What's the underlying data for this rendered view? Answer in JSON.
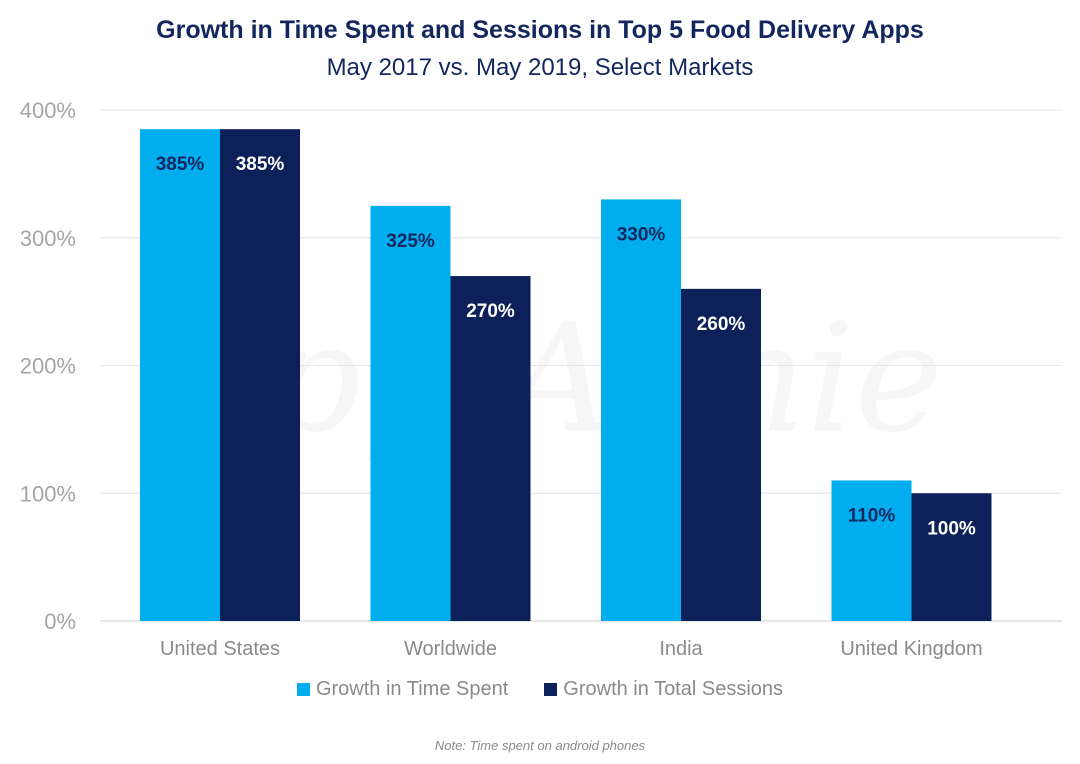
{
  "chart_data": {
    "type": "bar",
    "title": "Growth in Time Spent and Sessions in Top 5 Food Delivery Apps",
    "subtitle": "May 2017 vs. May 2019, Select Markets",
    "categories": [
      "United States",
      "Worldwide",
      "India",
      "United Kingdom"
    ],
    "series": [
      {
        "name": "Growth in Time Spent",
        "color": "#00aeef",
        "values": [
          385,
          325,
          330,
          110
        ],
        "labels": [
          "385%",
          "325%",
          "330%",
          "110%"
        ]
      },
      {
        "name": "Growth in Total Sessions",
        "color": "#0c2159",
        "values": [
          385,
          270,
          260,
          100
        ],
        "labels": [
          "385%",
          "270%",
          "260%",
          "100%"
        ]
      }
    ],
    "yticks": [
      0,
      100,
      200,
      300,
      400
    ],
    "ytick_labels": [
      "0%",
      "100%",
      "200%",
      "300%",
      "400%"
    ],
    "ylim": [
      0,
      400
    ],
    "grid": true,
    "legend_position": "bottom",
    "note": "Note: Time spent on android phones",
    "watermark": "App Annie"
  }
}
